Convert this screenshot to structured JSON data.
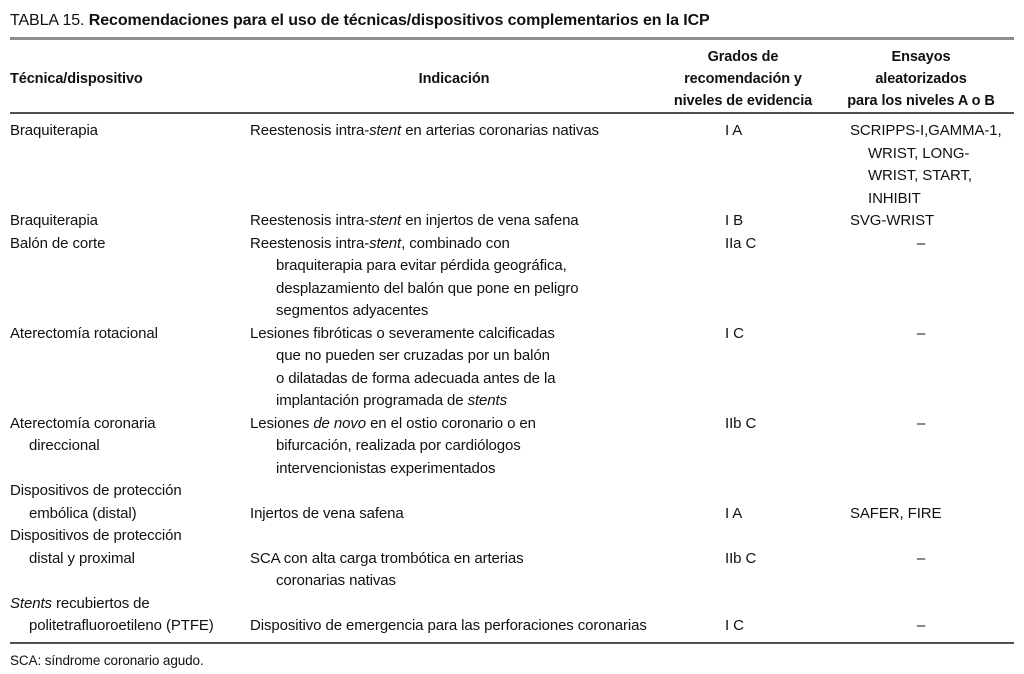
{
  "colors": {
    "rule_top": "#8d8d8d",
    "rule": "#4f4f4f",
    "text": "#111111",
    "background": "#ffffff"
  },
  "title": {
    "prefix": "TABLA 15.",
    "text": "Recomendaciones para el uso de técnicas/dispositivos complementarios en la ICP"
  },
  "table": {
    "headers": {
      "technique": [
        "Técnica/dispositivo"
      ],
      "indication": [
        "Indicación"
      ],
      "grade": [
        "Grados de",
        "recomendación y",
        "niveles de evidencia"
      ],
      "trials": [
        "Ensayos",
        "aleatorizados",
        "para los niveles A o B"
      ]
    },
    "rows": [
      {
        "technique": [
          "Braquiterapia"
        ],
        "indication": [
          "Reestenosis intra-*stent* en arterias coronarias nativas"
        ],
        "grade": "I A",
        "trials": [
          "SCRIPPS-I,GAMMA-1,",
          "WRIST, LONG-",
          "WRIST, START,",
          "INHIBIT"
        ],
        "offset": 0
      },
      {
        "technique": [
          "Braquiterapia"
        ],
        "indication": [
          "Reestenosis intra-*stent* en injertos de vena safena"
        ],
        "grade": "I B",
        "trials": [
          "SVG-WRIST"
        ],
        "offset": 0
      },
      {
        "technique": [
          "Balón de corte"
        ],
        "indication": [
          "Reestenosis intra-*stent*, combinado con",
          "braquiterapia para evitar pérdida geográfica,",
          "desplazamiento del balón que pone en peligro",
          "segmentos adyacentes"
        ],
        "grade": "IIa C",
        "trials": [
          "–"
        ],
        "offset": 0
      },
      {
        "technique": [
          "Aterectomía rotacional"
        ],
        "indication": [
          "Lesiones fibróticas o severamente calcificadas",
          "que no pueden ser cruzadas por un balón",
          "o dilatadas de forma adecuada antes de la",
          "implantación programada de *stents*"
        ],
        "grade": "I C",
        "trials": [
          "–"
        ],
        "offset": 0
      },
      {
        "technique": [
          "Aterectomía coronaria",
          "direccional"
        ],
        "indication": [
          "Lesiones *de novo* en el ostio coronario o en",
          "bifurcación, realizada por cardiólogos",
          "intervencionistas experimentados"
        ],
        "grade": "IIb C",
        "trials": [
          "–"
        ],
        "offset": 0
      },
      {
        "technique": [
          "Dispositivos de protección",
          "embólica (distal)"
        ],
        "indication": [
          "Injertos de vena safena"
        ],
        "grade": "I A",
        "trials": [
          "SAFER, FIRE"
        ],
        "offset": 1
      },
      {
        "technique": [
          "Dispositivos de protección",
          "distal y proximal"
        ],
        "indication": [
          "SCA con alta carga trombótica en arterias",
          "coronarias nativas"
        ],
        "grade": "IIb C",
        "trials": [
          "–"
        ],
        "offset": 1
      },
      {
        "technique": [
          "*Stents* recubiertos de",
          "politetrafluoroetileno (PTFE)"
        ],
        "indication": [
          "Dispositivo de emergencia para las perforaciones coronarias"
        ],
        "grade": "I C",
        "trials": [
          "–"
        ],
        "offset": 1
      }
    ]
  },
  "footnote": "SCA: síndrome coronario agudo."
}
